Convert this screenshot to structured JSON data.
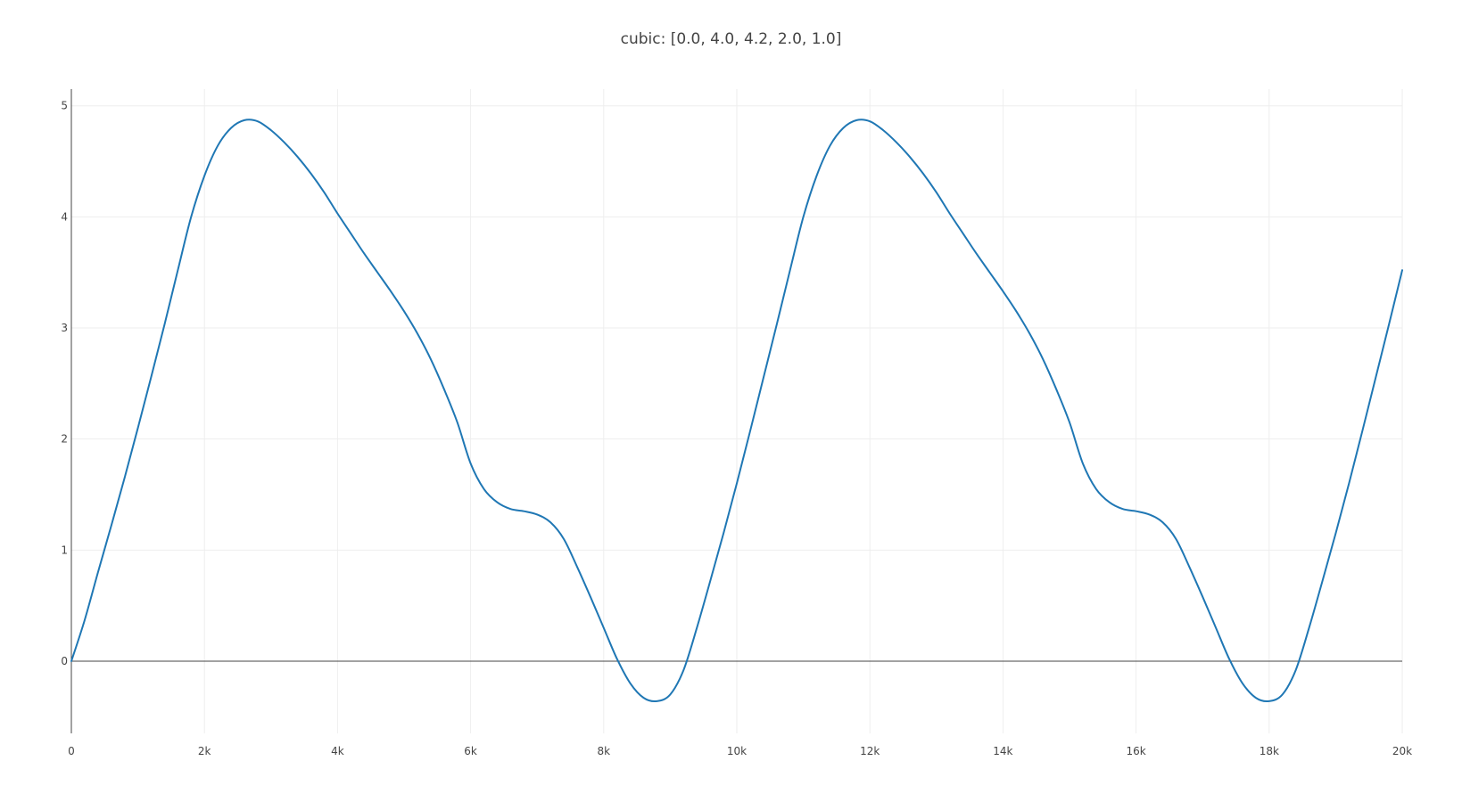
{
  "chart_data": {
    "type": "line",
    "title": "cubic: [0.0, 4.0, 4.2, 2.0, 1.0]",
    "xlabel": "",
    "ylabel": "",
    "xlim": [
      0,
      20000
    ],
    "ylim": [
      -0.65,
      5.15
    ],
    "grid": true,
    "legend": "none",
    "x_ticks": [
      {
        "value": 0,
        "label": "0"
      },
      {
        "value": 2000,
        "label": "2k"
      },
      {
        "value": 4000,
        "label": "4k"
      },
      {
        "value": 6000,
        "label": "6k"
      },
      {
        "value": 8000,
        "label": "8k"
      },
      {
        "value": 10000,
        "label": "10k"
      },
      {
        "value": 12000,
        "label": "12k"
      },
      {
        "value": 14000,
        "label": "14k"
      },
      {
        "value": 16000,
        "label": "16k"
      },
      {
        "value": 18000,
        "label": "18k"
      },
      {
        "value": 20000,
        "label": "20k"
      }
    ],
    "y_ticks": [
      {
        "value": 0,
        "label": "0"
      },
      {
        "value": 1,
        "label": "1"
      },
      {
        "value": 2,
        "label": "2"
      },
      {
        "value": 3,
        "label": "3"
      },
      {
        "value": 4,
        "label": "4"
      },
      {
        "value": 5,
        "label": "5"
      }
    ],
    "colors": {
      "series": "#1f77b4",
      "grid": "#eeeeee",
      "axis": "#444444",
      "text": "#444444"
    },
    "series": [
      {
        "x": [
          0,
          200,
          400,
          600,
          800,
          1000,
          1200,
          1400,
          1600,
          1800,
          2000,
          2200,
          2400,
          2600,
          2800,
          3000,
          3200,
          3400,
          3600,
          3800,
          4000,
          4200,
          4400,
          4600,
          4800,
          5000,
          5200,
          5400,
          5600,
          5800,
          6000,
          6200,
          6400,
          6600,
          6800,
          7000,
          7200,
          7400,
          7600,
          7800,
          8000,
          8200,
          8400,
          8600,
          8800,
          9000,
          9200,
          9400,
          9600,
          9800,
          10000,
          10200,
          10400,
          10600,
          10800,
          11000,
          11200,
          11400,
          11600,
          11800,
          12000,
          12200,
          12400,
          12600,
          12800,
          13000,
          13200,
          13400,
          13600,
          13800,
          14000,
          14200,
          14400,
          14600,
          14800,
          15000,
          15200,
          15400,
          15600,
          15800,
          16000,
          16200,
          16400,
          16600,
          16800,
          17000,
          17200,
          17400,
          17600,
          17800,
          18000,
          18200,
          18400,
          18600,
          18800,
          19000,
          19200,
          19400,
          19600,
          19800,
          20000
        ],
        "y": [
          0.0,
          0.37,
          0.8,
          1.22,
          1.65,
          2.1,
          2.56,
          3.03,
          3.52,
          4.0,
          4.37,
          4.64,
          4.8,
          4.87,
          4.86,
          4.78,
          4.67,
          4.54,
          4.39,
          4.22,
          4.03,
          3.85,
          3.67,
          3.5,
          3.33,
          3.15,
          2.95,
          2.72,
          2.45,
          2.15,
          1.78,
          1.55,
          1.43,
          1.37,
          1.35,
          1.32,
          1.25,
          1.1,
          0.85,
          0.58,
          0.3,
          0.02,
          -0.2,
          -0.33,
          -0.36,
          -0.3,
          -0.08,
          0.3,
          0.72,
          1.15,
          1.6,
          2.07,
          2.55,
          3.03,
          3.52,
          4.0,
          4.37,
          4.64,
          4.8,
          4.87,
          4.86,
          4.78,
          4.67,
          4.54,
          4.39,
          4.22,
          4.03,
          3.85,
          3.67,
          3.5,
          3.33,
          3.15,
          2.95,
          2.72,
          2.45,
          2.15,
          1.78,
          1.55,
          1.43,
          1.37,
          1.35,
          1.32,
          1.25,
          1.1,
          0.85,
          0.58,
          0.3,
          0.02,
          -0.2,
          -0.33,
          -0.36,
          -0.3,
          -0.08,
          0.3,
          0.72,
          1.15,
          1.6,
          2.07,
          2.55,
          3.03,
          3.52
        ]
      }
    ]
  }
}
